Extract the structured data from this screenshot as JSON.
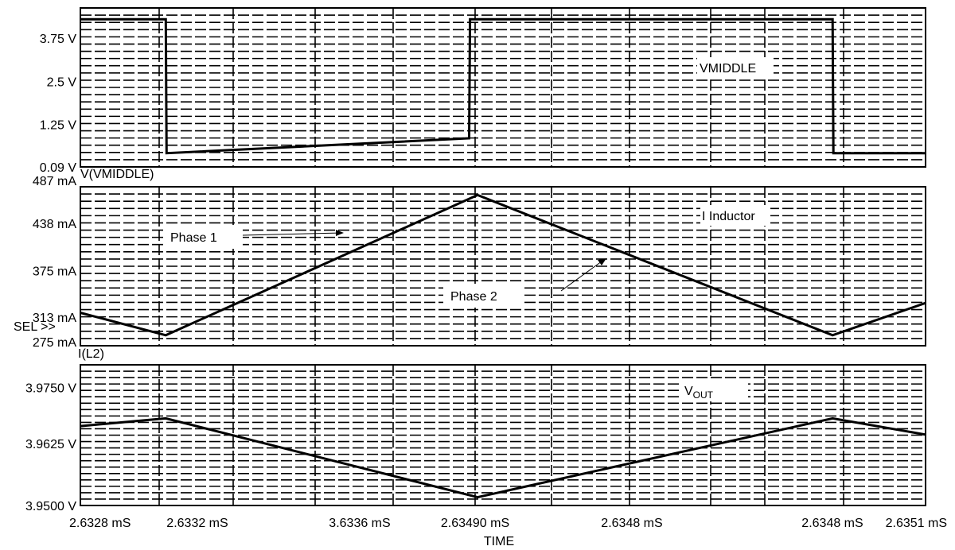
{
  "chart_data": [
    {
      "type": "line",
      "panel": "top",
      "label_box": "VMIDDLE",
      "trace_name": "V(VMIDDLE)",
      "ytick_labels": [
        "3.75 V",
        "2.5 V",
        "1.25 V",
        "0.09 V"
      ],
      "ytick_values": [
        3.75,
        2.5,
        1.25,
        0.09
      ],
      "ylim": [
        0.09,
        4.4
      ],
      "x": [
        0.0,
        0.101,
        0.102,
        0.46,
        0.461,
        0.89,
        0.891,
        1.0
      ],
      "y": [
        4.3,
        4.3,
        0.42,
        0.85,
        4.3,
        4.3,
        0.42,
        0.42
      ]
    },
    {
      "type": "line",
      "panel": "middle",
      "label_box": "I Inductor",
      "trace_name": "I(L2)",
      "sel_marker": "SEL >>",
      "ytick_labels": [
        "487 mA",
        "438 mA",
        "375 mA",
        "313 mA",
        "275 mA"
      ],
      "ytick_values": [
        487,
        438,
        375,
        313,
        275
      ],
      "ylim": [
        275,
        487
      ],
      "x": [
        0.0,
        0.101,
        0.47,
        0.89,
        1.0
      ],
      "y": [
        319,
        289,
        476,
        289,
        332
      ],
      "annotations": [
        {
          "text": "Phase 1"
        },
        {
          "text": "Phase 2"
        }
      ]
    },
    {
      "type": "line",
      "panel": "bottom",
      "label_box": "V",
      "label_box_sub": "OUT",
      "ytick_labels": [
        "3.9750 V",
        "3.9625 V",
        "3.9500 V"
      ],
      "ytick_values": [
        3.975,
        3.9625,
        3.95
      ],
      "ylim": [
        3.95,
        3.98
      ],
      "x": [
        0.0,
        0.101,
        0.47,
        0.89,
        1.0
      ],
      "y": [
        3.9664,
        3.9681,
        3.9506,
        3.9681,
        3.9645
      ]
    }
  ],
  "x_axis": {
    "tick_labels": [
      "2.6328 mS",
      "2.6332 mS",
      "3.6336 mS",
      "2.63490 mS",
      "2.6348 mS",
      "2.6348 mS",
      "2.6351 mS"
    ],
    "xlabel": "TIME"
  }
}
